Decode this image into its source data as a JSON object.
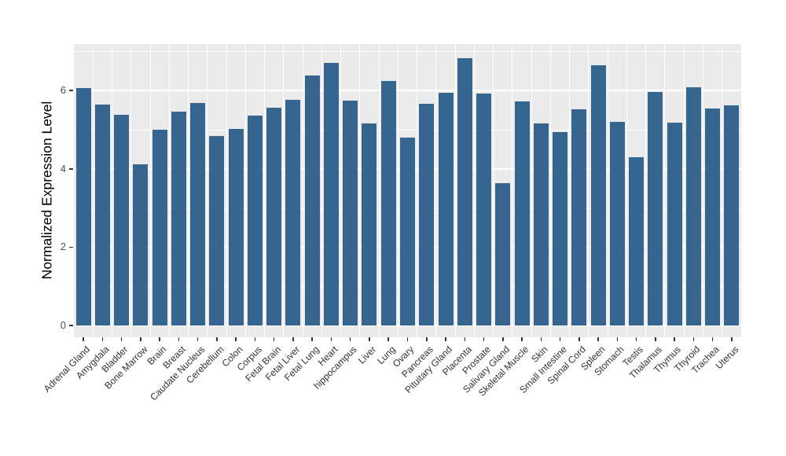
{
  "chart_data": {
    "type": "bar",
    "title": "",
    "xlabel": "",
    "ylabel": "Normalized Expression Level",
    "ylim": [
      0,
      7.2
    ],
    "yticks": [
      0,
      2,
      4,
      6
    ],
    "yminorticks": [
      1,
      3,
      5,
      7
    ],
    "grid": "on",
    "legend": "none",
    "bar_color": "#36658F",
    "panel_bg": "#ebebeb",
    "gridline_color": "#ffffff",
    "categories": [
      "Adrenal Gland",
      "Amygdala",
      "Bladder",
      "Bone Marrow",
      "Brain",
      "Breast",
      "Caudate Nucleus",
      "Cerebellum",
      "Colon",
      "Corpus",
      "Fetal Brain",
      "Fetal Liver",
      "Fetal Lung",
      "Heart",
      "hippocampus",
      "Liver",
      "Lung",
      "Ovary",
      "Pancreas",
      "Pituitary Gland",
      "Placenta",
      "Prostate",
      "Salivary Gland",
      "Skeletal Muscle",
      "Skin",
      "Small Intestine",
      "Spinal Cord",
      "Spleen",
      "Stomach",
      "Testis",
      "Thalamus",
      "Thymus",
      "Thyroid",
      "Trachea",
      "Uterus"
    ],
    "values": [
      6.06,
      5.65,
      5.38,
      4.12,
      5.0,
      5.46,
      5.69,
      4.83,
      5.02,
      5.36,
      5.57,
      5.77,
      6.39,
      6.71,
      5.75,
      5.17,
      6.25,
      4.8,
      5.67,
      5.94,
      6.83,
      5.92,
      3.64,
      5.72,
      5.17,
      4.95,
      5.52,
      6.65,
      5.21,
      4.3,
      5.96,
      5.18,
      6.09,
      5.54,
      5.62
    ]
  }
}
